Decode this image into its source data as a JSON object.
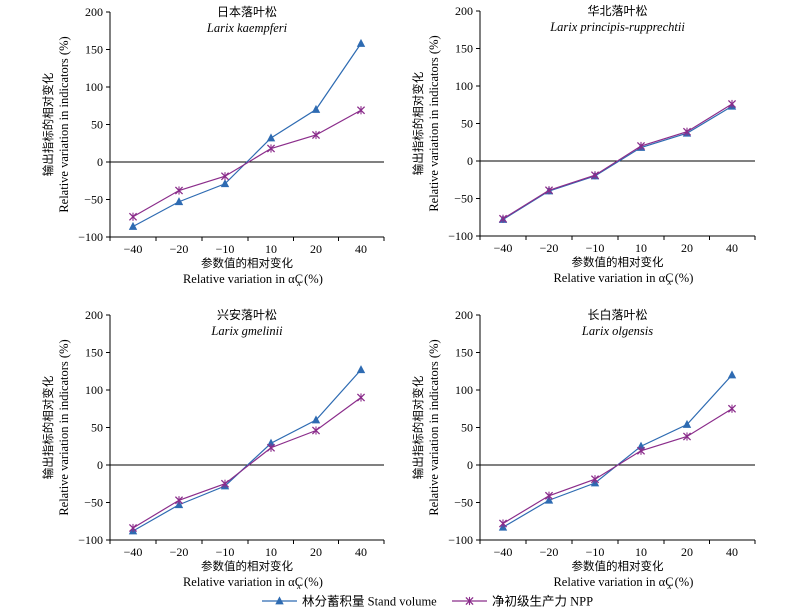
{
  "colors": {
    "stand": "#2e6bb2",
    "npp": "#8b2d8b"
  },
  "legend": {
    "stand": "林分蓄积量 Stand volume",
    "npp": "净初级生产力 NPP"
  },
  "chart_data": [
    {
      "type": "line",
      "title": "日本落叶松",
      "subtitle": "Larix kaempferi",
      "ylabel_cn": "输出指标的相对变化",
      "ylabel_en": "Relative variation in indicators (%)",
      "xlabel_cn": "参数值的相对变化",
      "xlabel_en": "Relative variation in αC",
      "categories": [
        "−40",
        "−20",
        "−10",
        "10",
        "20",
        "40"
      ],
      "ylim": [
        -100,
        200
      ],
      "yticks": [
        -100,
        -50,
        0,
        50,
        100,
        150,
        200
      ],
      "series": [
        {
          "name": "林分蓄积量 Stand volume",
          "values": [
            -86,
            -53,
            -29,
            32,
            70,
            158
          ]
        },
        {
          "name": "净初级生产力 NPP",
          "values": [
            -73,
            -38,
            -19,
            18,
            36,
            69
          ]
        }
      ]
    },
    {
      "type": "line",
      "title": "华北落叶松",
      "subtitle": "Larix principis-rupprechtii",
      "ylabel_cn": "输出指标的相对变化",
      "ylabel_en": "Relative variation in indicators (%)",
      "xlabel_cn": "参数值的相对变化",
      "xlabel_en": "Relative variation in αC",
      "categories": [
        "−40",
        "−20",
        "−10",
        "10",
        "20",
        "40"
      ],
      "ylim": [
        -100,
        200
      ],
      "yticks": [
        -100,
        -50,
        0,
        50,
        100,
        150,
        200
      ],
      "series": [
        {
          "name": "林分蓄积量 Stand volume",
          "values": [
            -78,
            -40,
            -20,
            18,
            37,
            73
          ]
        },
        {
          "name": "净初级生产力 NPP",
          "values": [
            -77,
            -39,
            -19,
            20,
            39,
            76
          ]
        }
      ]
    },
    {
      "type": "line",
      "title": "兴安落叶松",
      "subtitle": "Larix gmelinii",
      "ylabel_cn": "输出指标的相对变化",
      "ylabel_en": "Relative variation in indicators (%)",
      "xlabel_cn": "参数值的相对变化",
      "xlabel_en": "Relative variation in αC",
      "categories": [
        "−40",
        "−20",
        "−10",
        "10",
        "20",
        "40"
      ],
      "ylim": [
        -100,
        200
      ],
      "yticks": [
        -100,
        -50,
        0,
        50,
        100,
        150,
        200
      ],
      "series": [
        {
          "name": "林分蓄积量 Stand volume",
          "values": [
            -88,
            -53,
            -28,
            29,
            60,
            127
          ]
        },
        {
          "name": "净初级生产力 NPP",
          "values": [
            -84,
            -47,
            -25,
            23,
            46,
            90
          ]
        }
      ]
    },
    {
      "type": "line",
      "title": "长白落叶松",
      "subtitle": "Larix olgensis",
      "ylabel_cn": "输出指标的相对变化",
      "ylabel_en": "Relative variation in indicators (%)",
      "xlabel_cn": "参数值的相对变化",
      "xlabel_en": "Relative variation in αC",
      "categories": [
        "−40",
        "−20",
        "−10",
        "10",
        "20",
        "40"
      ],
      "ylim": [
        -100,
        200
      ],
      "yticks": [
        -100,
        -50,
        0,
        50,
        100,
        150,
        200
      ],
      "series": [
        {
          "name": "林分蓄积量 Stand volume",
          "values": [
            -83,
            -47,
            -24,
            25,
            54,
            120
          ]
        },
        {
          "name": "净初级生产力 NPP",
          "values": [
            -78,
            -41,
            -19,
            19,
            38,
            75
          ]
        }
      ]
    }
  ]
}
